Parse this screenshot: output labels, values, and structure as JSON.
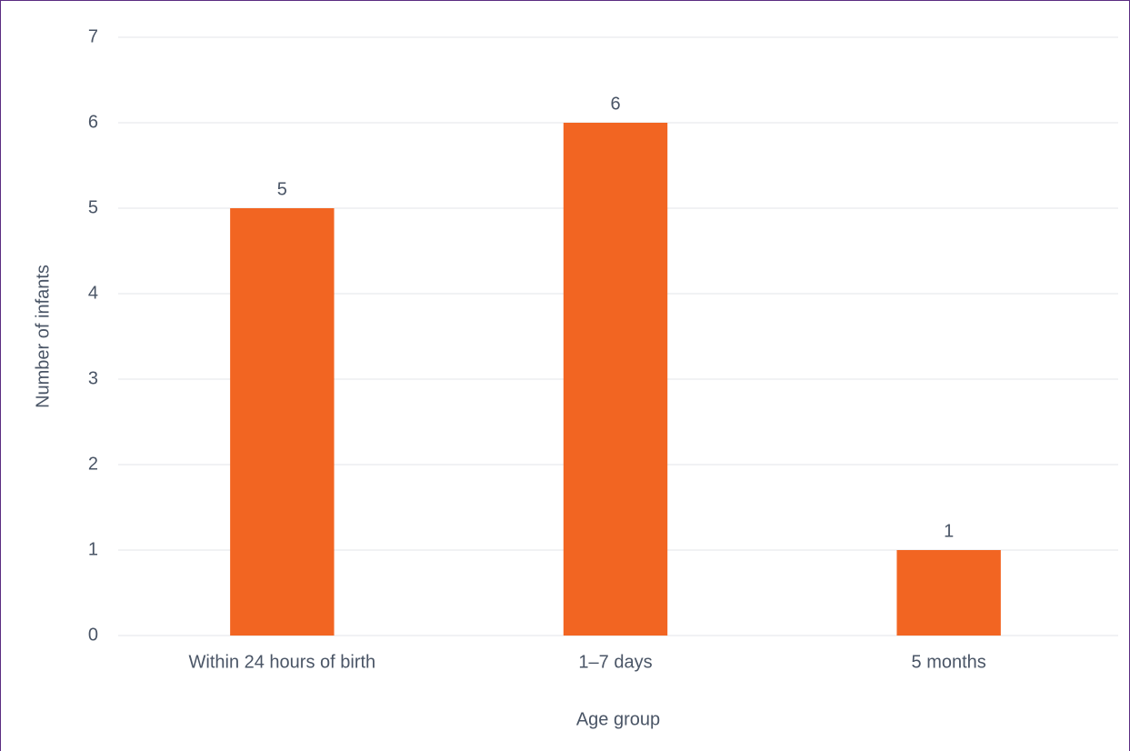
{
  "chart_data": {
    "type": "bar",
    "x_label": "Age group",
    "y_label": "Number of infants",
    "categories": [
      "Within 24 hours of birth",
      "1–7 days",
      "5 months"
    ],
    "values": [
      5,
      6,
      1
    ],
    "color": "#f26522",
    "ylim": [
      0,
      7
    ],
    "yticks": [
      0,
      1,
      2,
      3,
      4,
      5,
      6,
      7
    ],
    "grid": true,
    "data_labels": true
  }
}
